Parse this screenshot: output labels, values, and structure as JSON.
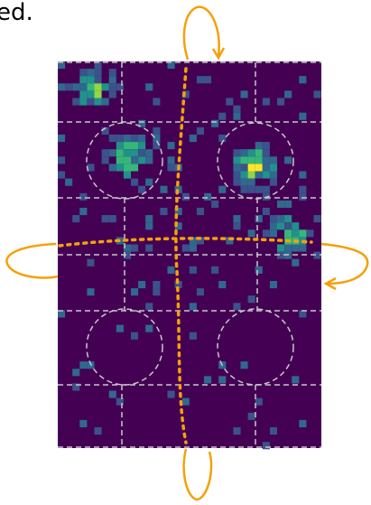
{
  "caption_fragment": "ed."
}
